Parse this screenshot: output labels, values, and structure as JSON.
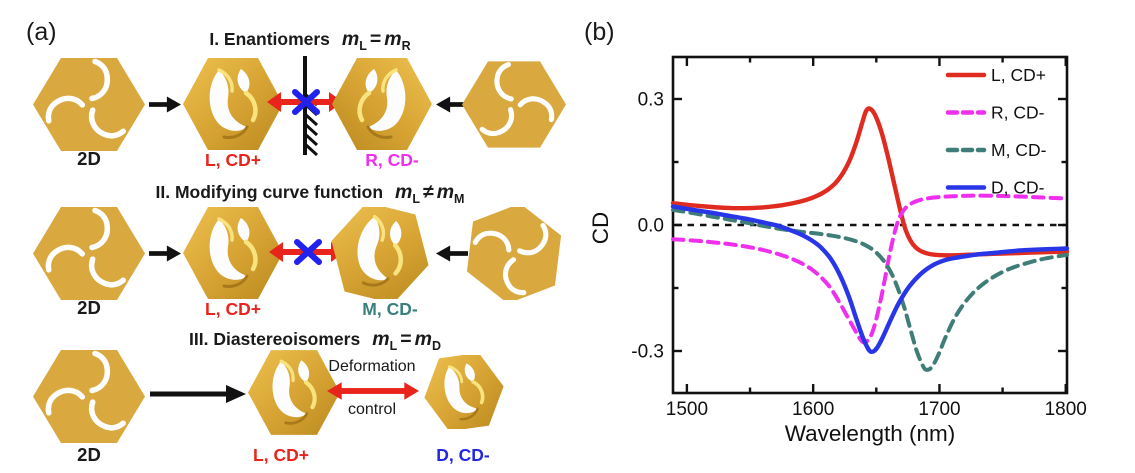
{
  "palette": {
    "gold": "#d9a93f",
    "gold_dark": "#bb8a1e",
    "label_red": "#e8241c",
    "label_magenta": "#ee2fee",
    "label_teal": "#3a7f7a",
    "label_blue": "#2328e0",
    "arrow_black": "#111111",
    "blocked_x_blue": "#2222ee",
    "curve_red": "#e02c20",
    "curve_magenta": "#ee30ee",
    "curve_teal": "#3f7d78",
    "curve_blue": "#2936e8"
  },
  "panel_a": {
    "label": "(a)",
    "rows": [
      {
        "title": "I. Enantiomers",
        "math": {
          "m1": "m",
          "s1": "L",
          "op": "=",
          "m2": "m",
          "s2": "R"
        },
        "label_2d": "2D",
        "l_label": "L, CD+",
        "r_label": "R, CD-"
      },
      {
        "title": "II. Modifying curve function",
        "math": {
          "m1": "m",
          "s1": "L",
          "op": "≠",
          "m2": "m",
          "s2": "M"
        },
        "label_2d": "2D",
        "l_label": "L, CD+",
        "m_label": "M, CD-"
      },
      {
        "title": "III. Diastereoisomers",
        "math": {
          "m1": "m",
          "s1": "L",
          "op": "=",
          "m2": "m",
          "s2": "D"
        },
        "label_2d": "2D",
        "l_label": "L, CD+",
        "d_label": "D, CD-",
        "arrow_caption_top": "Deformation",
        "arrow_caption_bottom": "control"
      }
    ],
    "icons": [
      "hexagon-2d-icon",
      "chiral-structure-l-icon",
      "chiral-structure-r-icon",
      "chiral-structure-m-icon",
      "chiral-structure-d-icon",
      "mirror-plane-icon",
      "blocked-transform-arrow-icon",
      "deformation-arrow-icon",
      "arrow-right-icon",
      "arrow-left-icon",
      "long-arrow-icon"
    ]
  },
  "panel_b": {
    "label": "(b)"
  },
  "chart_data": {
    "type": "line",
    "title": "",
    "xlabel": "Wavelength (nm)",
    "ylabel": "CD",
    "xlim": [
      1489,
      1801
    ],
    "ylim": [
      -0.4,
      0.4
    ],
    "x_ticks": [
      1500,
      1600,
      1700,
      1800
    ],
    "x_tick_labels": [
      "1500",
      "1600",
      "1700",
      "1800"
    ],
    "x_minor_ticks": [
      1550,
      1650,
      1750
    ],
    "y_ticks": [
      0.3,
      0.0,
      -0.3
    ],
    "y_tick_labels": [
      "0.3",
      "0.0",
      "-0.3"
    ],
    "y_minor_ticks": [
      0.15,
      -0.15
    ],
    "zero_line": 0.0,
    "grid": false,
    "legend_position": "top-right",
    "series": [
      {
        "name": "L, CD+",
        "id": "curve-l-cd-plus",
        "color": "#e02c20",
        "style": "solid",
        "points": [
          [
            1489,
            0.052
          ],
          [
            1500,
            0.048
          ],
          [
            1515,
            0.044
          ],
          [
            1530,
            0.041
          ],
          [
            1545,
            0.04
          ],
          [
            1560,
            0.042
          ],
          [
            1575,
            0.047
          ],
          [
            1590,
            0.056
          ],
          [
            1602,
            0.068
          ],
          [
            1612,
            0.085
          ],
          [
            1620,
            0.108
          ],
          [
            1628,
            0.148
          ],
          [
            1634,
            0.195
          ],
          [
            1639,
            0.245
          ],
          [
            1642,
            0.272
          ],
          [
            1645,
            0.277
          ],
          [
            1649,
            0.262
          ],
          [
            1654,
            0.222
          ],
          [
            1659,
            0.165
          ],
          [
            1664,
            0.1
          ],
          [
            1669,
            0.035
          ],
          [
            1673,
            -0.01
          ],
          [
            1678,
            -0.042
          ],
          [
            1684,
            -0.06
          ],
          [
            1692,
            -0.069
          ],
          [
            1702,
            -0.072
          ],
          [
            1715,
            -0.072
          ],
          [
            1730,
            -0.07
          ],
          [
            1750,
            -0.068
          ],
          [
            1770,
            -0.066
          ],
          [
            1801,
            -0.063
          ]
        ]
      },
      {
        "name": "R, CD-",
        "id": "curve-r-cd-minus",
        "color": "#ee30ee",
        "style": "dashed",
        "points": [
          [
            1489,
            -0.034
          ],
          [
            1505,
            -0.037
          ],
          [
            1520,
            -0.041
          ],
          [
            1535,
            -0.046
          ],
          [
            1550,
            -0.053
          ],
          [
            1565,
            -0.063
          ],
          [
            1580,
            -0.077
          ],
          [
            1592,
            -0.093
          ],
          [
            1602,
            -0.113
          ],
          [
            1612,
            -0.143
          ],
          [
            1620,
            -0.18
          ],
          [
            1628,
            -0.223
          ],
          [
            1634,
            -0.255
          ],
          [
            1638,
            -0.275
          ],
          [
            1641,
            -0.279
          ],
          [
            1645,
            -0.268
          ],
          [
            1649,
            -0.235
          ],
          [
            1653,
            -0.185
          ],
          [
            1657,
            -0.125
          ],
          [
            1661,
            -0.063
          ],
          [
            1665,
            -0.012
          ],
          [
            1669,
            0.022
          ],
          [
            1674,
            0.043
          ],
          [
            1681,
            0.056
          ],
          [
            1690,
            0.063
          ],
          [
            1702,
            0.067
          ],
          [
            1715,
            0.069
          ],
          [
            1730,
            0.07
          ],
          [
            1750,
            0.069
          ],
          [
            1770,
            0.067
          ],
          [
            1801,
            0.063
          ]
        ]
      },
      {
        "name": "M, CD-",
        "id": "curve-m-cd-minus",
        "color": "#3f7d78",
        "style": "dashed",
        "points": [
          [
            1489,
            0.036
          ],
          [
            1505,
            0.028
          ],
          [
            1520,
            0.02
          ],
          [
            1535,
            0.012
          ],
          [
            1550,
            0.004
          ],
          [
            1562,
            -0.003
          ],
          [
            1575,
            -0.01
          ],
          [
            1590,
            -0.016
          ],
          [
            1605,
            -0.021
          ],
          [
            1618,
            -0.027
          ],
          [
            1630,
            -0.035
          ],
          [
            1640,
            -0.046
          ],
          [
            1649,
            -0.063
          ],
          [
            1657,
            -0.09
          ],
          [
            1664,
            -0.128
          ],
          [
            1671,
            -0.185
          ],
          [
            1677,
            -0.248
          ],
          [
            1682,
            -0.3
          ],
          [
            1687,
            -0.336
          ],
          [
            1690,
            -0.345
          ],
          [
            1694,
            -0.338
          ],
          [
            1699,
            -0.31
          ],
          [
            1705,
            -0.266
          ],
          [
            1712,
            -0.222
          ],
          [
            1720,
            -0.185
          ],
          [
            1730,
            -0.152
          ],
          [
            1742,
            -0.125
          ],
          [
            1755,
            -0.105
          ],
          [
            1770,
            -0.09
          ],
          [
            1785,
            -0.079
          ],
          [
            1801,
            -0.071
          ]
        ]
      },
      {
        "name": "D, CD-",
        "id": "curve-d-cd-minus",
        "color": "#2936e8",
        "style": "solid",
        "points": [
          [
            1489,
            0.044
          ],
          [
            1505,
            0.036
          ],
          [
            1520,
            0.029
          ],
          [
            1535,
            0.021
          ],
          [
            1550,
            0.013
          ],
          [
            1562,
            0.005
          ],
          [
            1571,
            -0.001
          ],
          [
            1580,
            -0.01
          ],
          [
            1590,
            -0.022
          ],
          [
            1598,
            -0.035
          ],
          [
            1606,
            -0.053
          ],
          [
            1614,
            -0.081
          ],
          [
            1621,
            -0.118
          ],
          [
            1628,
            -0.168
          ],
          [
            1634,
            -0.222
          ],
          [
            1639,
            -0.265
          ],
          [
            1643,
            -0.292
          ],
          [
            1646,
            -0.302
          ],
          [
            1650,
            -0.295
          ],
          [
            1655,
            -0.268
          ],
          [
            1661,
            -0.228
          ],
          [
            1668,
            -0.185
          ],
          [
            1676,
            -0.147
          ],
          [
            1685,
            -0.117
          ],
          [
            1694,
            -0.097
          ],
          [
            1704,
            -0.084
          ],
          [
            1715,
            -0.077
          ],
          [
            1730,
            -0.07
          ],
          [
            1745,
            -0.066
          ],
          [
            1762,
            -0.061
          ],
          [
            1780,
            -0.058
          ],
          [
            1801,
            -0.056
          ]
        ]
      }
    ]
  }
}
